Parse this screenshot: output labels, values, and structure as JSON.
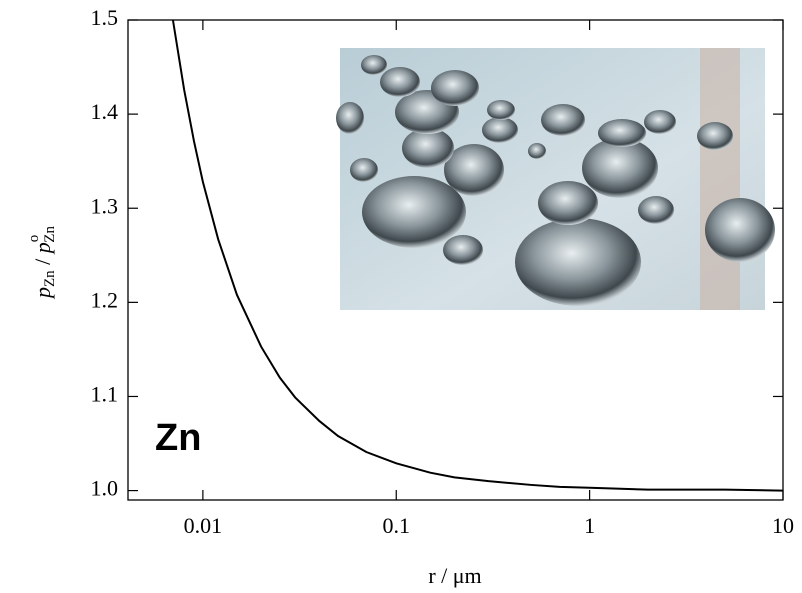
{
  "chart_data": {
    "type": "line",
    "annotation": "Zn",
    "xlabel": "r / μm",
    "ylabel_parts": [
      "p",
      "Zn",
      " / ",
      "p",
      "o",
      "Zn"
    ],
    "x": [
      0.007,
      0.008,
      0.009,
      0.01,
      0.012,
      0.015,
      0.02,
      0.025,
      0.03,
      0.04,
      0.05,
      0.07,
      0.1,
      0.15,
      0.2,
      0.3,
      0.5,
      0.7,
      1,
      2,
      5,
      10
    ],
    "values": [
      1.5,
      1.426,
      1.371,
      1.328,
      1.267,
      1.208,
      1.153,
      1.12,
      1.099,
      1.074,
      1.058,
      1.041,
      1.029,
      1.019,
      1.014,
      1.01,
      1.006,
      1.004,
      1.003,
      1.001,
      1.001,
      1.0
    ],
    "color": "#000000",
    "xlim": [
      0.0041,
      10
    ],
    "xscale": "log",
    "xticks": [
      0.01,
      0.1,
      1,
      10
    ],
    "ylim": [
      0.99,
      1.5
    ],
    "yticks": [
      {
        "value": 1,
        "label": "1.0"
      },
      1.1,
      1.2,
      1.3,
      1.4,
      1.5
    ]
  }
}
